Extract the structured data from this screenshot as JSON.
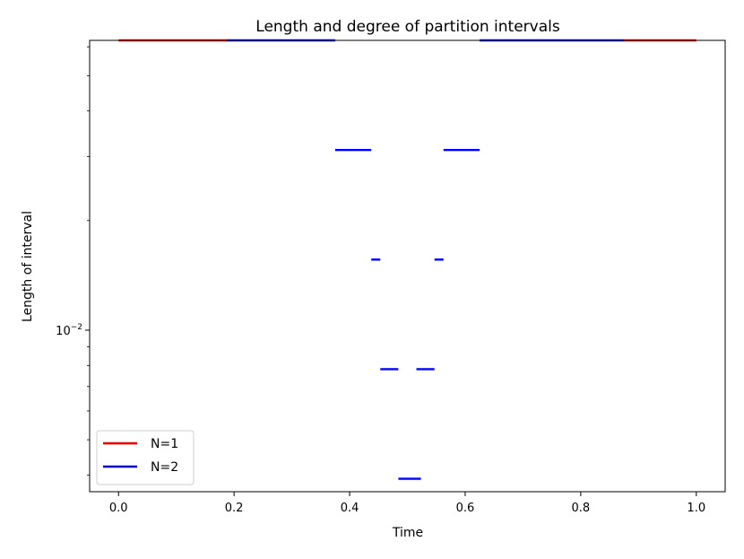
{
  "chart_data": {
    "type": "line",
    "title": "Length and degree of partition intervals",
    "xlabel": "Time",
    "ylabel": "Length of interval",
    "xlim": [
      -0.05,
      1.05
    ],
    "ylim": [
      0.0036,
      0.0625
    ],
    "yscale": "log",
    "grid": false,
    "legend_position": "lower-left",
    "x_ticks": [
      {
        "value": 0.0,
        "label": "0.0"
      },
      {
        "value": 0.2,
        "label": "0.2"
      },
      {
        "value": 0.4,
        "label": "0.4"
      },
      {
        "value": 0.6,
        "label": "0.6"
      },
      {
        "value": 0.8,
        "label": "0.8"
      },
      {
        "value": 1.0,
        "label": "1.0"
      }
    ],
    "y_major_ticks": [
      {
        "value": 0.01,
        "label_base": "10",
        "label_exp": "−2"
      }
    ],
    "y_minor_ticks": [
      0.004,
      0.005,
      0.006,
      0.007,
      0.008,
      0.009,
      0.02,
      0.03,
      0.04,
      0.05,
      0.06
    ],
    "series": [
      {
        "name": "N=1",
        "color": "#ff0000",
        "segments": [
          {
            "x0": 0.0,
            "x1": 0.1875,
            "length": 0.0625
          },
          {
            "x0": 0.875,
            "x1": 1.0,
            "length": 0.0625
          }
        ]
      },
      {
        "name": "N=2",
        "color": "#0000ff",
        "segments": [
          {
            "x0": 0.1875,
            "x1": 0.375,
            "length": 0.0625
          },
          {
            "x0": 0.625,
            "x1": 0.875,
            "length": 0.0625
          },
          {
            "x0": 0.375,
            "x1": 0.4375,
            "length": 0.03125
          },
          {
            "x0": 0.5625,
            "x1": 0.625,
            "length": 0.03125
          },
          {
            "x0": 0.4375,
            "x1": 0.453125,
            "length": 0.015625
          },
          {
            "x0": 0.546875,
            "x1": 0.5625,
            "length": 0.015625
          },
          {
            "x0": 0.453125,
            "x1": 0.484375,
            "length": 0.0078125
          },
          {
            "x0": 0.515625,
            "x1": 0.546875,
            "length": 0.0078125
          },
          {
            "x0": 0.484375,
            "x1": 0.5234375,
            "length": 0.00390625
          }
        ]
      }
    ]
  }
}
